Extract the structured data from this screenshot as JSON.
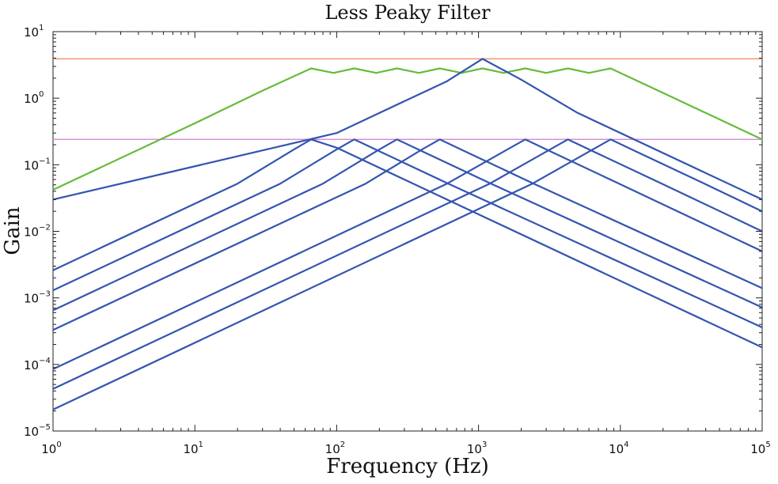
{
  "chart_data": {
    "type": "line",
    "title": "Less Peaky Filter",
    "xlabel": "Frequency (Hz)",
    "ylabel": "Gain",
    "xscale": "log",
    "yscale": "log",
    "xlim": [
      1,
      100000
    ],
    "ylim": [
      1e-05,
      10
    ],
    "grid": false,
    "legend": "none",
    "x_ticks": [
      {
        "base": "10",
        "exp": "0"
      },
      {
        "base": "10",
        "exp": "1"
      },
      {
        "base": "10",
        "exp": "2"
      },
      {
        "base": "10",
        "exp": "3"
      },
      {
        "base": "10",
        "exp": "4"
      },
      {
        "base": "10",
        "exp": "5"
      }
    ],
    "y_ticks": [
      {
        "base": "10",
        "exp": "−5"
      },
      {
        "base": "10",
        "exp": "−4"
      },
      {
        "base": "10",
        "exp": "−3"
      },
      {
        "base": "10",
        "exp": "−2"
      },
      {
        "base": "10",
        "exp": "−1"
      },
      {
        "base": "10",
        "exp": "0"
      },
      {
        "base": "10",
        "exp": "1"
      }
    ],
    "colors": {
      "bandpass": "#3355b0",
      "sum": "#66bb3c",
      "sum_reference": "#f4956e",
      "peak_reference": "#d88fd6"
    },
    "series": [
      {
        "kind": "reference",
        "color": "#f4956e",
        "x": [
          1,
          100000
        ],
        "y": [
          3.9,
          3.9
        ]
      },
      {
        "kind": "reference",
        "color": "#d88fd6",
        "x": [
          1,
          100000
        ],
        "y": [
          0.24,
          0.24
        ]
      },
      {
        "kind": "sum",
        "color": "#66bb3c",
        "x": [
          1,
          10,
          30,
          66,
          95,
          133,
          190,
          266,
          380,
          533,
          760,
          1066,
          1500,
          2133,
          3000,
          4266,
          6000,
          8533,
          15000,
          40000,
          100000
        ],
        "y": [
          0.042,
          0.42,
          1.3,
          2.8,
          2.4,
          2.8,
          2.4,
          2.8,
          2.4,
          2.8,
          2.4,
          2.8,
          2.4,
          2.8,
          2.4,
          2.8,
          2.4,
          2.8,
          1.6,
          0.6,
          0.24
        ]
      },
      {
        "kind": "bandpass",
        "color": "#3355b0",
        "x": [
          1,
          20,
          50,
          66,
          100,
          300,
          100000
        ],
        "y": [
          0.0026,
          0.052,
          0.17,
          0.24,
          0.18,
          0.06,
          0.00018
        ]
      },
      {
        "kind": "bandpass",
        "color": "#3355b0",
        "x": [
          1,
          40,
          100,
          133,
          200,
          600,
          100000
        ],
        "y": [
          0.0013,
          0.052,
          0.17,
          0.24,
          0.16,
          0.053,
          0.00036
        ]
      },
      {
        "kind": "bandpass",
        "color": "#3355b0",
        "x": [
          1,
          80,
          200,
          266,
          400,
          1200,
          100000
        ],
        "y": [
          0.00065,
          0.052,
          0.17,
          0.24,
          0.16,
          0.053,
          0.00072
        ]
      },
      {
        "kind": "bandpass",
        "color": "#3355b0",
        "x": [
          1,
          160,
          400,
          533,
          800,
          2400,
          100000
        ],
        "y": [
          0.00033,
          0.052,
          0.17,
          0.24,
          0.16,
          0.053,
          0.0014
        ]
      },
      {
        "kind": "bandpass",
        "color": "#3355b0",
        "x": [
          1,
          100,
          300,
          600,
          1066,
          2000,
          5000,
          100000
        ],
        "y": [
          0.03,
          0.3,
          0.9,
          1.8,
          3.9,
          1.9,
          0.6,
          0.03
        ]
      },
      {
        "kind": "bandpass",
        "color": "#3355b0",
        "x": [
          1,
          600,
          1600,
          2133,
          3200,
          9600,
          100000
        ],
        "y": [
          8.5e-05,
          0.052,
          0.17,
          0.24,
          0.16,
          0.053,
          0.005
        ]
      },
      {
        "kind": "bandpass",
        "color": "#3355b0",
        "x": [
          1,
          1200,
          3200,
          4266,
          6400,
          19200,
          100000
        ],
        "y": [
          4.3e-05,
          0.052,
          0.17,
          0.24,
          0.16,
          0.053,
          0.01
        ]
      },
      {
        "kind": "bandpass",
        "color": "#3355b0",
        "x": [
          1,
          2400,
          6400,
          8533,
          12800,
          38400,
          100000
        ],
        "y": [
          2.1e-05,
          0.052,
          0.17,
          0.24,
          0.16,
          0.053,
          0.02
        ]
      }
    ]
  }
}
